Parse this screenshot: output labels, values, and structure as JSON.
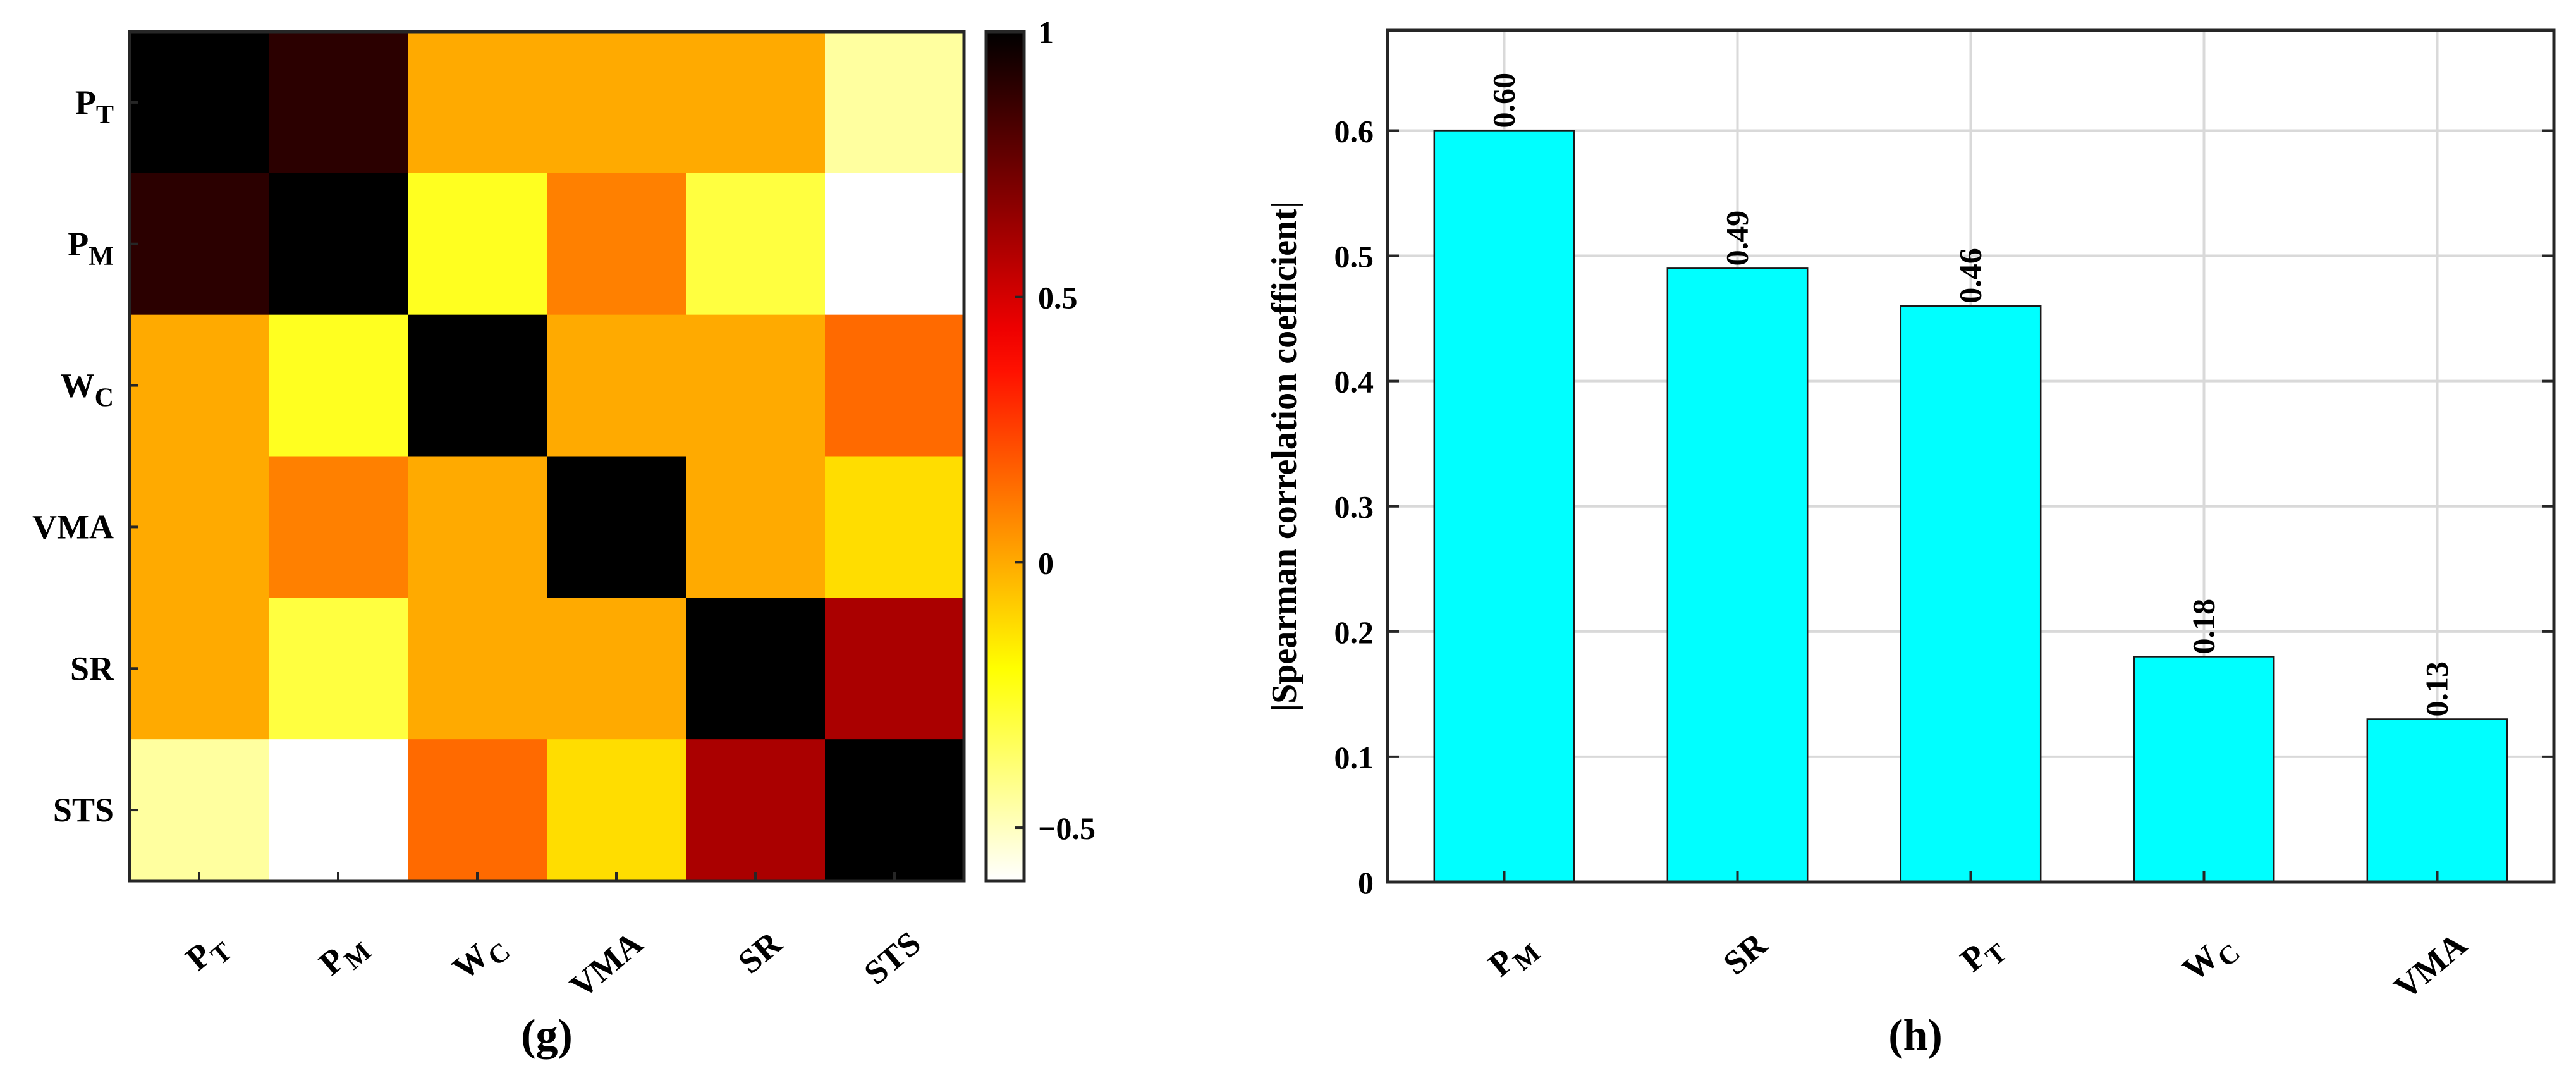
{
  "chart_data": [
    {
      "type": "heatmap",
      "panel_label": "(g)",
      "rows": [
        {
          "base": "P",
          "sub": "T"
        },
        {
          "base": "P",
          "sub": "M"
        },
        {
          "base": "W",
          "sub": "C"
        },
        {
          "base": "VMA",
          "sub": ""
        },
        {
          "base": "SR",
          "sub": ""
        },
        {
          "base": "STS",
          "sub": ""
        }
      ],
      "columns": [
        {
          "base": "P",
          "sub": "T"
        },
        {
          "base": "P",
          "sub": "M"
        },
        {
          "base": "W",
          "sub": "C"
        },
        {
          "base": "VMA",
          "sub": ""
        },
        {
          "base": "SR",
          "sub": ""
        },
        {
          "base": "STS",
          "sub": ""
        }
      ],
      "values": [
        [
          1.0,
          0.9,
          0.0,
          0.0,
          0.0,
          -0.45
        ],
        [
          0.9,
          1.0,
          -0.25,
          0.1,
          -0.3,
          -0.6
        ],
        [
          0.0,
          -0.25,
          1.0,
          0.0,
          0.0,
          0.15
        ],
        [
          0.0,
          0.1,
          0.0,
          1.0,
          0.0,
          -0.12
        ],
        [
          0.0,
          -0.3,
          0.0,
          0.0,
          1.0,
          0.6
        ],
        [
          -0.45,
          -0.6,
          0.15,
          -0.12,
          0.6,
          1.0
        ]
      ],
      "colorbar": {
        "min": -0.6,
        "max": 1.0,
        "ticks": [
          1,
          0.5,
          0,
          -0.5
        ],
        "tick_labels": [
          "1",
          "0.5",
          "0",
          "−0.5"
        ],
        "colormap": "hot"
      }
    },
    {
      "type": "bar",
      "panel_label": "(h)",
      "categories": [
        {
          "base": "P",
          "sub": "M"
        },
        {
          "base": "SR",
          "sub": ""
        },
        {
          "base": "P",
          "sub": "T"
        },
        {
          "base": "W",
          "sub": "C"
        },
        {
          "base": "VMA",
          "sub": ""
        }
      ],
      "values": [
        0.6,
        0.49,
        0.46,
        0.18,
        0.13
      ],
      "data_labels": [
        "0.60",
        "0.49",
        "0.46",
        "0.18",
        "0.13"
      ],
      "ylabel": "|Spearman correlation coefficient|",
      "ylim": [
        0,
        0.68
      ],
      "yticks": [
        0,
        0.1,
        0.2,
        0.3,
        0.4,
        0.5,
        0.6
      ],
      "ytick_labels": [
        "0",
        "0.1",
        "0.2",
        "0.3",
        "0.4",
        "0.5",
        "0.6"
      ],
      "grid": true,
      "bar_color": "#00FFFF"
    }
  ]
}
